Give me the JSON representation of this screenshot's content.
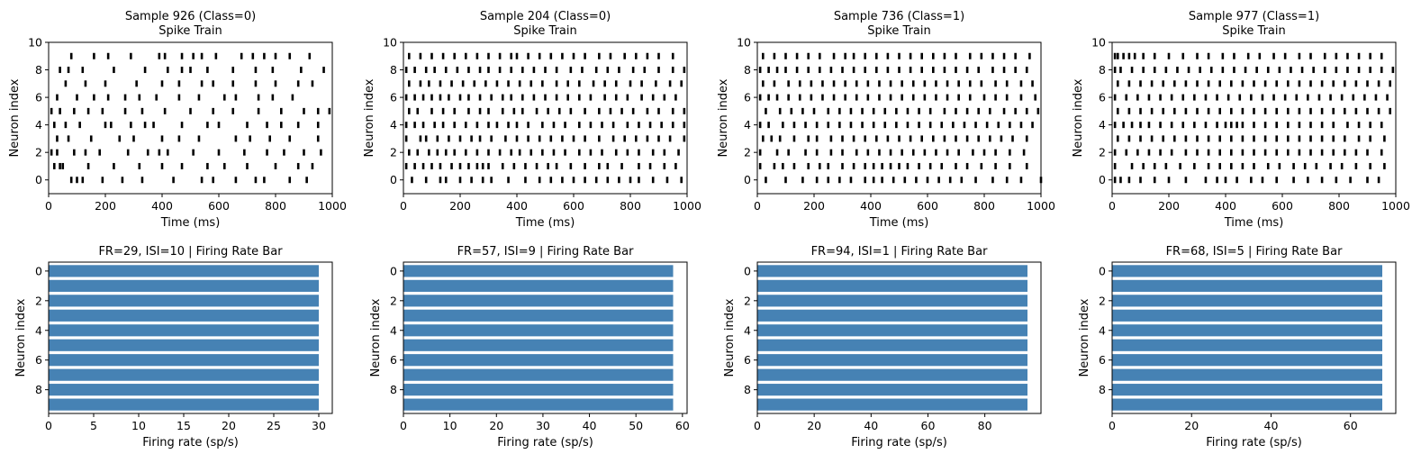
{
  "colors": {
    "spike": "#000000",
    "bar": "#4682b4",
    "axes": "#000000",
    "background": "#ffffff"
  },
  "chart_data": [
    {
      "type": "scatter",
      "panel": "raster",
      "title": [
        "Sample 926 (Class=0)",
        "Spike Train"
      ],
      "xlabel": "Time (ms)",
      "ylabel": "Neuron index",
      "xlim": [
        0,
        1000
      ],
      "ylim": [
        -1,
        10
      ],
      "xticks": [
        0,
        200,
        400,
        600,
        800,
        1000
      ],
      "yticks": [
        0,
        2,
        4,
        6,
        8,
        10
      ],
      "marker": "|",
      "grid": false,
      "spikes_ms": [
        [
          80,
          100,
          120,
          190,
          260,
          330,
          440,
          540,
          580,
          660,
          730,
          760,
          850,
          910
        ],
        [
          20,
          40,
          50,
          140,
          230,
          320,
          400,
          470,
          560,
          620,
          700,
          800,
          880,
          930
        ],
        [
          10,
          30,
          90,
          130,
          180,
          280,
          350,
          390,
          420,
          510,
          600,
          690,
          770,
          830,
          900,
          960
        ],
        [
          30,
          70,
          150,
          250,
          300,
          400,
          460,
          530,
          660,
          710,
          780,
          850,
          950
        ],
        [
          20,
          60,
          110,
          200,
          220,
          290,
          340,
          370,
          470,
          560,
          600,
          700,
          770,
          820,
          880,
          950
        ],
        [
          10,
          40,
          90,
          140,
          190,
          270,
          330,
          410,
          500,
          580,
          650,
          740,
          820,
          900,
          950,
          990
        ],
        [
          30,
          100,
          160,
          210,
          270,
          320,
          380,
          460,
          530,
          620,
          660,
          740,
          790,
          860
        ],
        [
          60,
          130,
          200,
          310,
          400,
          460,
          540,
          580,
          650,
          730,
          800,
          880,
          930
        ],
        [
          40,
          70,
          120,
          230,
          340,
          420,
          470,
          500,
          560,
          650,
          730,
          790,
          890,
          970
        ],
        [
          80,
          160,
          210,
          290,
          390,
          410,
          470,
          510,
          540,
          590,
          680,
          720,
          760,
          800,
          850,
          920
        ]
      ]
    },
    {
      "type": "scatter",
      "panel": "raster",
      "title": [
        "Sample 204 (Class=0)",
        "Spike Train"
      ],
      "xlabel": "Time (ms)",
      "ylabel": "Neuron index",
      "xlim": [
        0,
        1000
      ],
      "ylim": [
        -1,
        10
      ],
      "xticks": [
        0,
        200,
        400,
        600,
        800,
        1000
      ],
      "yticks": [
        0,
        2,
        4,
        6,
        8,
        10
      ],
      "marker": "|",
      "grid": false,
      "spikes_ms": [
        [
          30,
          80,
          130,
          150,
          200,
          240,
          280,
          310,
          370,
          430,
          480,
          520,
          560,
          600,
          640,
          680,
          720,
          760,
          800,
          830,
          880,
          930,
          980
        ],
        [
          10,
          40,
          70,
          100,
          130,
          170,
          200,
          230,
          260,
          280,
          300,
          350,
          390,
          430,
          470,
          510,
          540,
          590,
          640,
          690,
          720,
          770,
          830,
          870,
          920,
          960
        ],
        [
          20,
          50,
          90,
          120,
          150,
          180,
          220,
          260,
          300,
          340,
          380,
          410,
          450,
          490,
          530,
          570,
          620,
          660,
          700,
          750,
          790,
          830,
          880,
          920,
          970
        ],
        [
          10,
          60,
          80,
          120,
          160,
          200,
          240,
          270,
          310,
          360,
          400,
          440,
          480,
          520,
          560,
          600,
          640,
          690,
          740,
          780,
          820,
          860,
          900,
          940,
          990
        ],
        [
          10,
          40,
          70,
          110,
          140,
          180,
          220,
          260,
          300,
          330,
          370,
          400,
          440,
          490,
          530,
          570,
          620,
          660,
          700,
          740,
          790,
          830,
          870,
          910,
          950,
          990
        ],
        [
          20,
          50,
          100,
          140,
          180,
          230,
          270,
          300,
          350,
          390,
          420,
          470,
          510,
          550,
          590,
          640,
          690,
          730,
          770,
          810,
          860,
          900,
          950,
          990
        ],
        [
          10,
          40,
          70,
          100,
          130,
          160,
          200,
          230,
          270,
          310,
          350,
          380,
          420,
          460,
          500,
          540,
          580,
          620,
          660,
          710,
          750,
          790,
          840,
          880,
          920,
          960
        ],
        [
          20,
          60,
          90,
          130,
          170,
          210,
          250,
          290,
          330,
          370,
          410,
          450,
          490,
          540,
          580,
          620,
          670,
          710,
          750,
          800,
          840,
          890,
          940,
          980
        ],
        [
          10,
          40,
          80,
          110,
          150,
          190,
          230,
          270,
          300,
          340,
          380,
          420,
          460,
          500,
          540,
          590,
          630,
          680,
          720,
          760,
          810,
          850,
          900,
          950,
          990
        ],
        [
          20,
          60,
          100,
          140,
          180,
          220,
          260,
          300,
          340,
          380,
          400,
          440,
          480,
          520,
          560,
          600,
          640,
          690,
          730,
          780,
          820,
          860,
          900,
          950
        ]
      ]
    },
    {
      "type": "scatter",
      "panel": "raster",
      "title": [
        "Sample 736 (Class=1)",
        "Spike Train"
      ],
      "xlabel": "Time (ms)",
      "ylabel": "Neuron index",
      "xlim": [
        0,
        1000
      ],
      "ylim": [
        -1,
        10
      ],
      "xticks": [
        0,
        200,
        400,
        600,
        800,
        1000
      ],
      "yticks": [
        0,
        2,
        4,
        6,
        8,
        10
      ],
      "marker": "|",
      "grid": false,
      "spikes_ms": [
        [
          30,
          100,
          160,
          210,
          250,
          290,
          330,
          380,
          410,
          440,
          480,
          520,
          560,
          600,
          640,
          680,
          720,
          770,
          830,
          880,
          930,
          1000
        ],
        [
          10,
          60,
          90,
          130,
          180,
          220,
          250,
          300,
          340,
          380,
          410,
          440,
          470,
          500,
          530,
          570,
          610,
          650,
          700,
          740,
          790,
          840,
          890,
          950
        ],
        [
          10,
          70,
          110,
          170,
          210,
          260,
          300,
          350,
          390,
          430,
          470,
          510,
          550,
          590,
          630,
          670,
          710,
          760,
          800,
          840,
          890,
          940
        ],
        [
          20,
          50,
          80,
          130,
          180,
          210,
          260,
          300,
          340,
          380,
          420,
          460,
          500,
          540,
          580,
          620,
          660,
          700,
          740,
          780,
          820,
          860,
          900,
          950
        ],
        [
          10,
          40,
          90,
          130,
          170,
          210,
          250,
          290,
          330,
          370,
          410,
          450,
          490,
          530,
          570,
          610,
          650,
          690,
          730,
          770,
          810,
          850,
          890,
          930,
          970
        ],
        [
          30,
          80,
          120,
          160,
          200,
          250,
          290,
          330,
          370,
          410,
          450,
          490,
          530,
          570,
          610,
          660,
          700,
          740,
          780,
          820,
          870,
          910,
          950,
          990
        ],
        [
          10,
          40,
          70,
          110,
          150,
          190,
          230,
          270,
          310,
          350,
          390,
          430,
          470,
          510,
          550,
          590,
          630,
          670,
          710,
          750,
          800,
          840,
          880,
          930,
          980
        ],
        [
          20,
          60,
          110,
          150,
          190,
          230,
          270,
          310,
          350,
          390,
          430,
          470,
          510,
          550,
          590,
          630,
          670,
          710,
          750,
          790,
          840,
          880,
          930,
          970
        ],
        [
          10,
          40,
          70,
          100,
          140,
          180,
          220,
          260,
          300,
          340,
          380,
          420,
          460,
          500,
          540,
          580,
          620,
          660,
          700,
          740,
          780,
          830,
          870,
          910,
          950
        ],
        [
          20,
          60,
          100,
          140,
          180,
          220,
          270,
          310,
          340,
          380,
          420,
          460,
          500,
          540,
          580,
          620,
          660,
          700,
          750,
          790,
          830,
          870,
          910,
          960
        ]
      ]
    },
    {
      "type": "scatter",
      "panel": "raster",
      "title": [
        "Sample 977 (Class=1)",
        "Spike Train"
      ],
      "xlabel": "Time (ms)",
      "ylabel": "Neuron index",
      "xlim": [
        0,
        1000
      ],
      "ylim": [
        -1,
        10
      ],
      "xticks": [
        0,
        200,
        400,
        600,
        800,
        1000
      ],
      "yticks": [
        0,
        2,
        4,
        6,
        8,
        10
      ],
      "marker": "|",
      "grid": false,
      "spikes_ms": [
        [
          10,
          30,
          60,
          100,
          150,
          200,
          260,
          330,
          370,
          400,
          440,
          490,
          530,
          580,
          640,
          690,
          740,
          790,
          840,
          900,
          940
        ],
        [
          10,
          70,
          110,
          150,
          190,
          240,
          290,
          340,
          380,
          420,
          460,
          500,
          550,
          590,
          640,
          680,
          720,
          770,
          810,
          860,
          910,
          960
        ],
        [
          10,
          50,
          90,
          130,
          170,
          210,
          260,
          300,
          340,
          380,
          420,
          460,
          500,
          540,
          580,
          620,
          660,
          700,
          740,
          780,
          820,
          860,
          900,
          950
        ],
        [
          20,
          60,
          100,
          140,
          180,
          220,
          260,
          300,
          340,
          380,
          420,
          460,
          500,
          540,
          580,
          620,
          660,
          700,
          740,
          780,
          820,
          870,
          910,
          960
        ],
        [
          10,
          40,
          70,
          100,
          130,
          170,
          210,
          250,
          290,
          330,
          370,
          400,
          420,
          440,
          460,
          500,
          540,
          580,
          620,
          660,
          700,
          740,
          780,
          830,
          870,
          910,
          950
        ],
        [
          20,
          60,
          100,
          140,
          180,
          220,
          260,
          300,
          340,
          380,
          420,
          460,
          500,
          540,
          580,
          620,
          660,
          700,
          740,
          780,
          820,
          860,
          900,
          940,
          980
        ],
        [
          10,
          50,
          90,
          130,
          170,
          210,
          250,
          290,
          330,
          370,
          410,
          450,
          490,
          530,
          570,
          610,
          650,
          690,
          730,
          770,
          810,
          850,
          890,
          930,
          970
        ],
        [
          20,
          60,
          100,
          140,
          180,
          220,
          260,
          300,
          340,
          380,
          420,
          460,
          500,
          540,
          580,
          620,
          660,
          700,
          740,
          780,
          820,
          860,
          900,
          940,
          980
        ],
        [
          10,
          30,
          70,
          110,
          150,
          190,
          230,
          270,
          310,
          350,
          390,
          430,
          470,
          510,
          550,
          590,
          630,
          670,
          710,
          750,
          790,
          830,
          870,
          910,
          950,
          990
        ],
        [
          10,
          20,
          40,
          60,
          80,
          110,
          150,
          200,
          250,
          300,
          340,
          390,
          430,
          480,
          520,
          570,
          610,
          660,
          700,
          750,
          790,
          830,
          870,
          910,
          950
        ]
      ]
    },
    {
      "type": "bar",
      "panel": "barh",
      "title": "FR=29, ISI=10 | Firing Rate Bar",
      "xlabel": "Firing rate (sp/s)",
      "ylabel": "Neuron index",
      "categories": [
        0,
        1,
        2,
        3,
        4,
        5,
        6,
        7,
        8,
        9
      ],
      "values": [
        30,
        30,
        30,
        30,
        30,
        30,
        30,
        30,
        30,
        30
      ],
      "xlim": [
        0,
        31.5
      ],
      "xticks": [
        0,
        5,
        10,
        15,
        20,
        25,
        30
      ],
      "yticks": [
        0,
        2,
        4,
        6,
        8
      ],
      "orientation": "horizontal",
      "inverted_y": true,
      "grid": false
    },
    {
      "type": "bar",
      "panel": "barh",
      "title": "FR=57, ISI=9 | Firing Rate Bar",
      "xlabel": "Firing rate (sp/s)",
      "ylabel": "Neuron index",
      "categories": [
        0,
        1,
        2,
        3,
        4,
        5,
        6,
        7,
        8,
        9
      ],
      "values": [
        58,
        58,
        58,
        58,
        58,
        58,
        58,
        58,
        58,
        58
      ],
      "xlim": [
        0,
        61
      ],
      "xticks": [
        0,
        10,
        20,
        30,
        40,
        50,
        60
      ],
      "yticks": [
        0,
        2,
        4,
        6,
        8
      ],
      "orientation": "horizontal",
      "inverted_y": true,
      "grid": false
    },
    {
      "type": "bar",
      "panel": "barh",
      "title": "FR=94, ISI=1 | Firing Rate Bar",
      "xlabel": "Firing rate (sp/s)",
      "ylabel": "Neuron index",
      "categories": [
        0,
        1,
        2,
        3,
        4,
        5,
        6,
        7,
        8,
        9
      ],
      "values": [
        95,
        95,
        95,
        95,
        95,
        95,
        95,
        95,
        95,
        95
      ],
      "xlim": [
        0,
        99.75
      ],
      "xticks": [
        0,
        20,
        40,
        60,
        80
      ],
      "yticks": [
        0,
        2,
        4,
        6,
        8
      ],
      "orientation": "horizontal",
      "inverted_y": true,
      "grid": false
    },
    {
      "type": "bar",
      "panel": "barh",
      "title": "FR=68, ISI=5 | Firing Rate Bar",
      "xlabel": "Firing rate (sp/s)",
      "ylabel": "Neuron index",
      "categories": [
        0,
        1,
        2,
        3,
        4,
        5,
        6,
        7,
        8,
        9
      ],
      "values": [
        68,
        68,
        68,
        68,
        68,
        68,
        68,
        68,
        68,
        68
      ],
      "xlim": [
        0,
        71.4
      ],
      "xticks": [
        0,
        20,
        40,
        60
      ],
      "yticks": [
        0,
        2,
        4,
        6,
        8
      ],
      "orientation": "horizontal",
      "inverted_y": true,
      "grid": false
    }
  ]
}
